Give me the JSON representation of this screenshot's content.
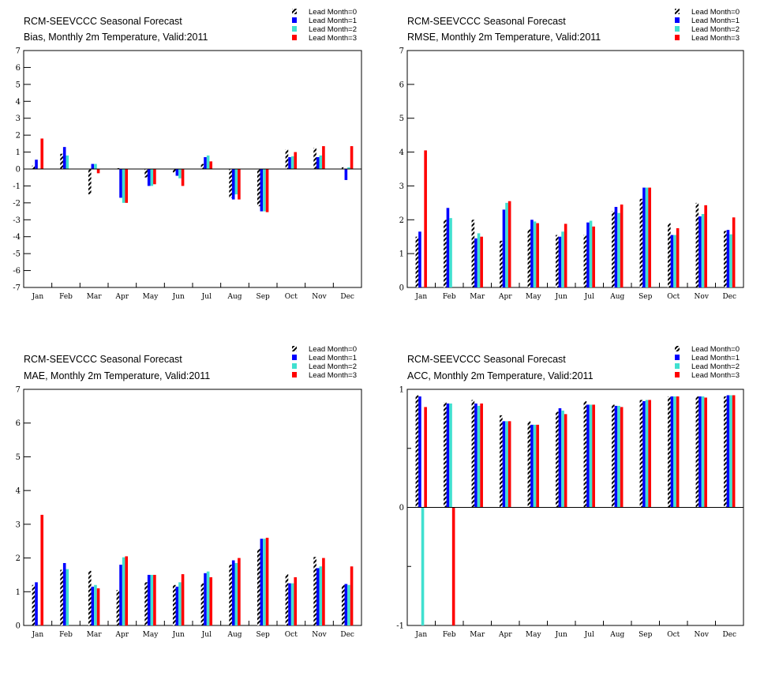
{
  "colors": {
    "lead0": "hatched-black-white",
    "lead1": "#0000ff",
    "lead2": "#40e0d0",
    "lead3": "#ff0000"
  },
  "chart_data": [
    {
      "type": "bar",
      "title": "RCM-SEEVCCC Seasonal Forecast",
      "subtitle": "Bias, Monthly 2m Temperature, Valid:2011",
      "categories": [
        "Jan",
        "Feb",
        "Mar",
        "Apr",
        "May",
        "Jun",
        "Jul",
        "Aug",
        "Sep",
        "Oct",
        "Nov",
        "Dec"
      ],
      "ylim": [
        -7,
        7
      ],
      "yticks": [
        -7,
        -6,
        -5,
        -4,
        -3,
        -2,
        -1,
        0,
        1,
        2,
        3,
        4,
        5,
        6,
        7
      ],
      "ytick_labels": [
        "-7",
        "-6",
        "-5",
        "-4",
        "-3",
        "-2",
        "-1",
        "0",
        "1",
        "2",
        "3",
        "4",
        "5",
        "6",
        "7"
      ],
      "legend_position": "top-right",
      "series": [
        {
          "name": "Lead Month=0",
          "values": [
            0.2,
            0.9,
            -1.5,
            0.05,
            -0.5,
            -0.2,
            0.3,
            -1.7,
            -2.2,
            1.15,
            1.25,
            0.1
          ]
        },
        {
          "name": "Lead Month=1",
          "values": [
            0.55,
            1.3,
            0.3,
            -1.7,
            -1.0,
            -0.4,
            0.7,
            -1.8,
            -2.5,
            0.7,
            0.7,
            -0.65
          ]
        },
        {
          "name": "Lead Month=2",
          "values": [
            0.0,
            0.8,
            0.3,
            -2.0,
            -1.0,
            -0.55,
            0.8,
            -1.5,
            -2.5,
            0.75,
            0.8,
            0.1
          ]
        },
        {
          "name": "Lead Month=3",
          "values": [
            1.8,
            0.0,
            -0.25,
            -2.0,
            -0.9,
            -1.0,
            0.45,
            -1.8,
            -2.55,
            1.0,
            1.35,
            1.35
          ]
        }
      ]
    },
    {
      "type": "bar",
      "title": "RCM-SEEVCCC Seasonal Forecast",
      "subtitle": "RMSE, Monthly 2m Temperature, Valid:2011",
      "categories": [
        "Jan",
        "Feb",
        "Mar",
        "Apr",
        "May",
        "Jun",
        "Jul",
        "Aug",
        "Sep",
        "Oct",
        "Nov",
        "Dec"
      ],
      "ylim": [
        0,
        7
      ],
      "yticks": [
        0,
        1,
        2,
        3,
        4,
        5,
        6,
        7
      ],
      "ytick_labels": [
        "0",
        "1",
        "2",
        "3",
        "4",
        "5",
        "6",
        "7"
      ],
      "legend_position": "top-right",
      "series": [
        {
          "name": "Lead Month=0",
          "values": [
            1.5,
            2.0,
            2.0,
            1.38,
            1.72,
            1.55,
            1.55,
            2.25,
            2.62,
            1.9,
            2.5,
            1.67
          ]
        },
        {
          "name": "Lead Month=1",
          "values": [
            1.65,
            2.35,
            1.45,
            2.3,
            2.0,
            1.5,
            1.92,
            2.38,
            2.95,
            1.55,
            2.1,
            1.7
          ]
        },
        {
          "name": "Lead Month=2",
          "values": [
            0.0,
            2.05,
            1.6,
            2.5,
            1.95,
            1.65,
            1.97,
            2.2,
            2.95,
            1.55,
            2.17,
            1.57
          ]
        },
        {
          "name": "Lead Month=3",
          "values": [
            4.05,
            0.0,
            1.5,
            2.55,
            1.9,
            1.88,
            1.8,
            2.45,
            2.95,
            1.75,
            2.43,
            2.07
          ]
        }
      ]
    },
    {
      "type": "bar",
      "title": "RCM-SEEVCCC Seasonal Forecast",
      "subtitle": "MAE, Monthly 2m Temperature, Valid:2011",
      "categories": [
        "Jan",
        "Feb",
        "Mar",
        "Apr",
        "May",
        "Jun",
        "Jul",
        "Aug",
        "Sep",
        "Oct",
        "Nov",
        "Dec"
      ],
      "ylim": [
        0,
        7
      ],
      "yticks": [
        0,
        1,
        2,
        3,
        4,
        5,
        6,
        7
      ],
      "ytick_labels": [
        "0",
        "1",
        "2",
        "3",
        "4",
        "5",
        "6",
        "7"
      ],
      "legend_position": "top-right",
      "series": [
        {
          "name": "Lead Month=0",
          "values": [
            1.2,
            1.65,
            1.62,
            1.05,
            1.28,
            1.2,
            1.25,
            1.8,
            2.27,
            1.52,
            2.03,
            1.2
          ]
        },
        {
          "name": "Lead Month=1",
          "values": [
            1.28,
            1.85,
            1.15,
            1.8,
            1.5,
            1.15,
            1.55,
            1.93,
            2.57,
            1.25,
            1.7,
            1.23
          ]
        },
        {
          "name": "Lead Month=2",
          "values": [
            0.0,
            1.67,
            1.2,
            2.02,
            1.5,
            1.28,
            1.6,
            1.85,
            2.57,
            1.25,
            1.75,
            1.2
          ]
        },
        {
          "name": "Lead Month=3",
          "values": [
            3.28,
            0.0,
            1.1,
            2.05,
            1.5,
            1.52,
            1.43,
            2.0,
            2.6,
            1.43,
            2.0,
            1.75
          ]
        }
      ]
    },
    {
      "type": "bar",
      "title": "RCM-SEEVCCC Seasonal Forecast",
      "subtitle": "ACC, Monthly 2m Temperature, Valid:2011",
      "categories": [
        "Jan",
        "Feb",
        "Mar",
        "Apr",
        "May",
        "Jun",
        "Jul",
        "Aug",
        "Sep",
        "Oct",
        "Nov",
        "Dec"
      ],
      "ylim": [
        -1,
        1
      ],
      "yticks": [
        -1,
        0,
        1
      ],
      "ytick_labels": [
        "-1",
        "0",
        "1"
      ],
      "yminor_step": 0.5,
      "legend_position": "top-right",
      "series": [
        {
          "name": "Lead Month=0",
          "values": [
            0.95,
            0.89,
            0.91,
            0.78,
            0.73,
            0.81,
            0.9,
            0.87,
            0.91,
            0.94,
            0.94,
            0.94
          ]
        },
        {
          "name": "Lead Month=1",
          "values": [
            0.94,
            0.88,
            0.88,
            0.73,
            0.7,
            0.84,
            0.87,
            0.86,
            0.9,
            0.94,
            0.94,
            0.95
          ]
        },
        {
          "name": "Lead Month=2",
          "values": [
            -1.0,
            0.88,
            0.86,
            0.73,
            0.7,
            0.82,
            0.87,
            0.86,
            0.91,
            0.94,
            0.94,
            0.95
          ]
        },
        {
          "name": "Lead Month=3",
          "values": [
            0.85,
            -1.0,
            0.88,
            0.73,
            0.7,
            0.79,
            0.87,
            0.85,
            0.91,
            0.94,
            0.93,
            0.95
          ]
        }
      ]
    }
  ]
}
